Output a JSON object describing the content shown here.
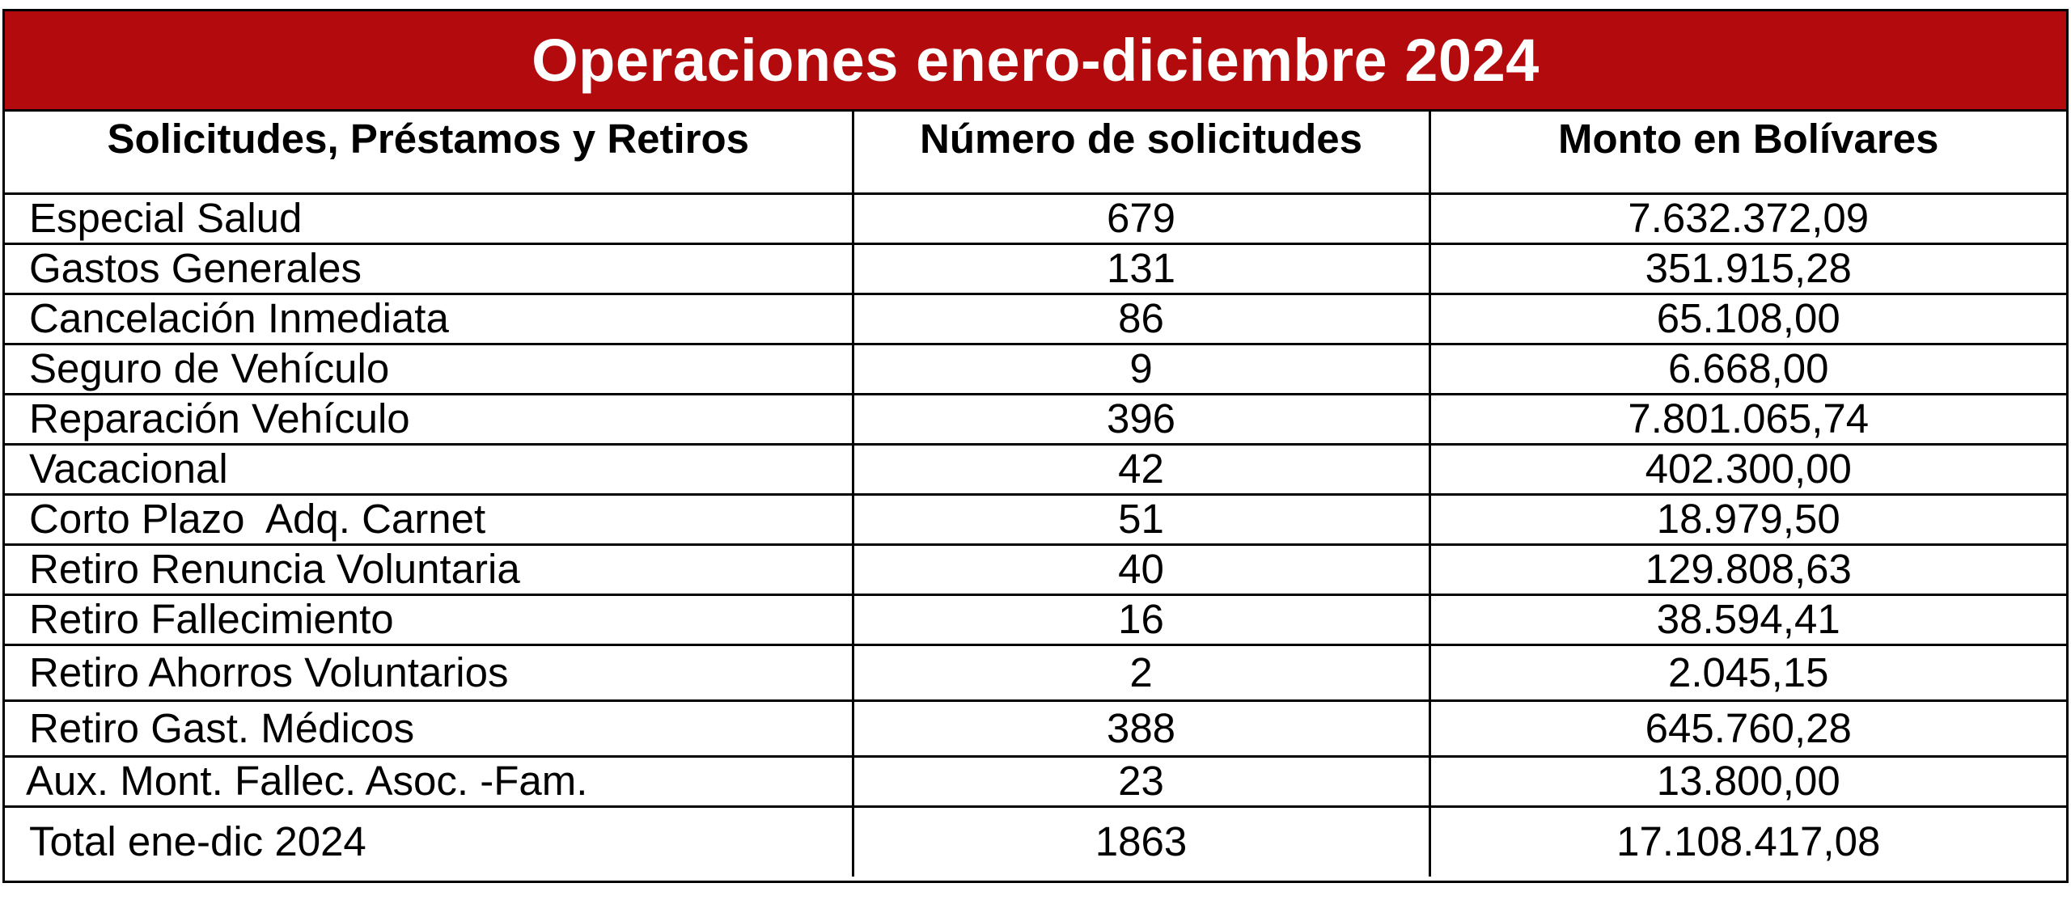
{
  "title": "Operaciones enero-diciembre 2024",
  "colors": {
    "title_background": "#b30b0d",
    "title_text": "#ffffff",
    "border": "#000000"
  },
  "columns": [
    "Solicitudes, Préstamos y Retiros",
    "Número de solicitudes",
    "Monto en Bolívares"
  ],
  "rows": [
    {
      "concept": "Especial Salud",
      "count": "679",
      "amount": "7.632.372,09"
    },
    {
      "concept": "Gastos Generales",
      "count": "131",
      "amount": "351.915,28"
    },
    {
      "concept": "Cancelación Inmediata",
      "count": "86",
      "amount": "65.108,00"
    },
    {
      "concept": "Seguro de Vehículo",
      "count": "9",
      "amount": "6.668,00"
    },
    {
      "concept": "Reparación Vehículo",
      "count": "396",
      "amount": "7.801.065,74"
    },
    {
      "concept": "Vacacional",
      "count": "42",
      "amount": "402.300,00"
    },
    {
      "concept": "Corto Plazo  Adq. Carnet",
      "count": "51",
      "amount": "18.979,50"
    },
    {
      "concept": "Retiro Renuncia Voluntaria",
      "count": "40",
      "amount": "129.808,63"
    },
    {
      "concept": "Retiro Fallecimiento",
      "count": "16",
      "amount": "38.594,41"
    },
    {
      "concept": "Retiro Ahorros Voluntarios",
      "count": "2",
      "amount": "2.045,15"
    },
    {
      "concept": "Retiro Gast. Médicos",
      "count": "388",
      "amount": "645.760,28"
    },
    {
      "concept": "Aux. Mont. Fallec. Asoc. -Fam.",
      "count": "23",
      "amount": "13.800,00"
    }
  ],
  "total": {
    "concept": "Total ene-dic 2024",
    "count": "1863",
    "amount": "17.108.417,08"
  }
}
